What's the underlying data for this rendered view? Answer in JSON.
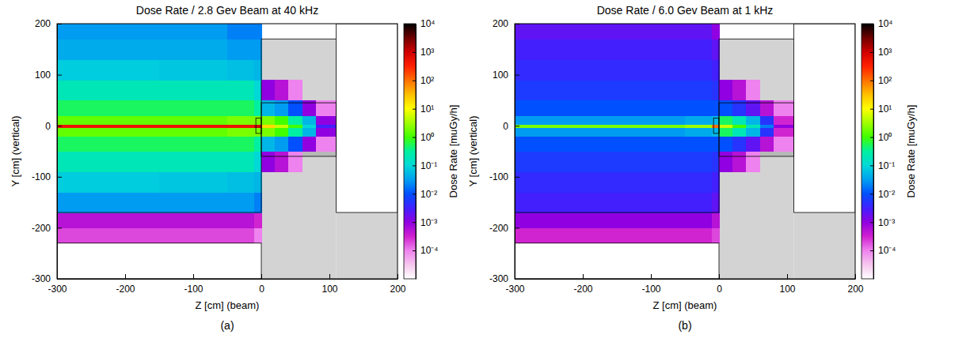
{
  "chart_data": [
    {
      "type": "heatmap",
      "title": "Dose Rate / 2.8 Gev Beam at 40 kHz",
      "panel_label": "(a)",
      "x_label": "Z [cm] (beam)",
      "y_label": "Y [cm] (vertical)",
      "xlim": [
        -300,
        200
      ],
      "xticks": [
        -300,
        -200,
        -100,
        0,
        100,
        200
      ],
      "ylim": [
        -300,
        200
      ],
      "yticks": [
        -300,
        -200,
        -100,
        0,
        100,
        200
      ],
      "x_edges": [
        -300,
        -250,
        -200,
        -150,
        -100,
        -50,
        -10,
        0,
        20,
        40,
        60,
        80,
        110,
        150,
        200
      ],
      "y_edges": [
        -300,
        -230,
        -200,
        -170,
        -130,
        -90,
        -50,
        -20,
        -3,
        3,
        20,
        50,
        90,
        130,
        170,
        200
      ],
      "cells": [
        [
          null,
          null,
          null,
          null,
          null,
          null,
          null,
          null,
          null,
          null,
          null,
          null,
          null,
          null
        ],
        [
          0.0002,
          0.0002,
          0.0002,
          0.0002,
          0.0002,
          0.0002,
          0.0001,
          null,
          null,
          null,
          null,
          null,
          null,
          null
        ],
        [
          0.0005,
          0.0005,
          0.0005,
          0.0005,
          0.0005,
          0.0005,
          0.0003,
          null,
          null,
          null,
          null,
          null,
          null,
          null
        ],
        [
          0.03,
          0.03,
          0.03,
          0.03,
          0.03,
          0.03,
          0.02,
          null,
          null,
          null,
          null,
          null,
          null,
          null
        ],
        [
          0.08,
          0.08,
          0.08,
          0.07,
          0.07,
          0.06,
          0.05,
          null,
          null,
          null,
          null,
          null,
          null,
          null
        ],
        [
          0.2,
          0.2,
          0.2,
          0.2,
          0.2,
          0.2,
          0.1,
          0.001,
          0.0005,
          0.0001,
          null,
          null,
          null,
          null
        ],
        [
          0.5,
          0.5,
          0.5,
          0.5,
          0.5,
          0.5,
          0.3,
          0.05,
          0.03,
          0.01,
          0.001,
          0.0001,
          null,
          null
        ],
        [
          1.5,
          1.5,
          1.5,
          1.5,
          1.5,
          2,
          2,
          2,
          1,
          0.3,
          0.05,
          0.001,
          null,
          null
        ],
        [
          500,
          500,
          500,
          500,
          500,
          500,
          1000,
          20,
          5,
          1,
          0.1,
          0.003,
          null,
          null
        ],
        [
          1.5,
          1.5,
          1.5,
          1.5,
          1.5,
          2,
          2,
          2,
          1,
          0.3,
          0.05,
          0.001,
          null,
          null
        ],
        [
          0.5,
          0.5,
          0.5,
          0.5,
          0.5,
          0.5,
          0.3,
          0.05,
          0.03,
          0.01,
          0.001,
          0.0001,
          null,
          null
        ],
        [
          0.2,
          0.2,
          0.2,
          0.2,
          0.2,
          0.2,
          0.1,
          0.001,
          0.0005,
          0.0001,
          null,
          null,
          null,
          null
        ],
        [
          0.08,
          0.08,
          0.08,
          0.07,
          0.07,
          0.06,
          0.05,
          null,
          null,
          null,
          null,
          null,
          null,
          null
        ],
        [
          0.04,
          0.04,
          0.04,
          0.04,
          0.04,
          0.03,
          0.03,
          null,
          null,
          null,
          null,
          null,
          null,
          null
        ],
        [
          0.03,
          0.03,
          0.03,
          0.03,
          0.03,
          0.02,
          0.02,
          null,
          null,
          null,
          null,
          null,
          null,
          null
        ]
      ],
      "shielding": [
        [
          0,
          110,
          -300,
          170
        ],
        [
          110,
          200,
          -300,
          -170
        ]
      ],
      "inner_block": [
        0,
        110,
        -60,
        45
      ],
      "outlines": [
        [
          -300,
          0,
          -300,
          -230
        ],
        [
          110,
          200,
          -170,
          200
        ],
        [
          0,
          110,
          -60,
          45
        ],
        [
          -8,
          0,
          -15,
          15
        ]
      ],
      "lines": [
        [
          -300,
          -170,
          0,
          -170
        ],
        [
          0,
          -170,
          0,
          170
        ],
        [
          0,
          170,
          110,
          170
        ]
      ],
      "colorbar": {
        "label": "Dose Rate [muGy/h]",
        "range": [
          1e-05,
          10000
        ],
        "ticks": [
          {
            "value": 0.0001,
            "label": "10⁻⁴"
          },
          {
            "value": 0.001,
            "label": "10⁻³"
          },
          {
            "value": 0.01,
            "label": "10⁻²"
          },
          {
            "value": 0.1,
            "label": "10⁻¹"
          },
          {
            "value": 1,
            "label": "10⁰"
          },
          {
            "value": 10,
            "label": "10¹"
          },
          {
            "value": 100,
            "label": "10²"
          },
          {
            "value": 1000,
            "label": "10³"
          },
          {
            "value": 10000,
            "label": "10⁴"
          }
        ]
      }
    },
    {
      "type": "heatmap",
      "title": "Dose Rate / 6.0 Gev Beam at 1 kHz",
      "panel_label": "(b)",
      "x_label": "Z [cm] (beam)",
      "y_label": "Y [cm] (vertical)",
      "xlim": [
        -300,
        200
      ],
      "xticks": [
        -300,
        -200,
        -100,
        0,
        100,
        200
      ],
      "ylim": [
        -300,
        200
      ],
      "yticks": [
        -300,
        -200,
        -100,
        0,
        100,
        200
      ],
      "x_edges": [
        -300,
        -250,
        -200,
        -150,
        -100,
        -50,
        -10,
        0,
        20,
        40,
        60,
        80,
        110,
        150,
        200
      ],
      "y_edges": [
        -300,
        -230,
        -200,
        -170,
        -130,
        -90,
        -50,
        -20,
        -3,
        3,
        20,
        50,
        90,
        130,
        170,
        200
      ],
      "cells": [
        [
          null,
          null,
          null,
          null,
          null,
          null,
          null,
          null,
          null,
          null,
          null,
          null,
          null,
          null
        ],
        [
          0.0003,
          0.0003,
          0.0003,
          0.0003,
          0.0003,
          0.0003,
          0.0002,
          null,
          null,
          null,
          null,
          null,
          null,
          null
        ],
        [
          0.001,
          0.001,
          0.001,
          0.001,
          0.001,
          0.001,
          0.0005,
          null,
          null,
          null,
          null,
          null,
          null,
          null
        ],
        [
          0.003,
          0.003,
          0.003,
          0.003,
          0.003,
          0.003,
          0.002,
          null,
          null,
          null,
          null,
          null,
          null,
          null
        ],
        [
          0.004,
          0.004,
          0.004,
          0.004,
          0.004,
          0.004,
          0.003,
          null,
          null,
          null,
          null,
          null,
          null,
          null
        ],
        [
          0.006,
          0.006,
          0.006,
          0.006,
          0.006,
          0.006,
          0.005,
          0.001,
          0.0005,
          0.0001,
          null,
          null,
          null,
          null
        ],
        [
          0.01,
          0.01,
          0.01,
          0.01,
          0.01,
          0.01,
          0.01,
          0.01,
          0.005,
          0.002,
          0.0005,
          0.0001,
          null,
          null
        ],
        [
          0.03,
          0.03,
          0.03,
          0.03,
          0.03,
          0.04,
          0.05,
          0.5,
          0.2,
          0.05,
          0.005,
          0.0003,
          null,
          null
        ],
        [
          2,
          2,
          2,
          2,
          2,
          3,
          100,
          5,
          1,
          0.2,
          0.02,
          0.001,
          null,
          null
        ],
        [
          0.03,
          0.03,
          0.03,
          0.03,
          0.03,
          0.04,
          0.05,
          0.5,
          0.2,
          0.05,
          0.005,
          0.0003,
          null,
          null
        ],
        [
          0.01,
          0.01,
          0.01,
          0.01,
          0.01,
          0.01,
          0.01,
          0.01,
          0.005,
          0.002,
          0.0005,
          0.0001,
          null,
          null
        ],
        [
          0.006,
          0.006,
          0.006,
          0.006,
          0.006,
          0.006,
          0.005,
          0.001,
          0.0005,
          0.0001,
          null,
          null,
          null,
          null
        ],
        [
          0.004,
          0.004,
          0.004,
          0.004,
          0.004,
          0.004,
          0.003,
          null,
          null,
          null,
          null,
          null,
          null,
          null
        ],
        [
          0.003,
          0.003,
          0.003,
          0.003,
          0.003,
          0.003,
          0.002,
          null,
          null,
          null,
          null,
          null,
          null,
          null
        ],
        [
          0.002,
          0.002,
          0.002,
          0.002,
          0.002,
          0.002,
          0.001,
          null,
          null,
          null,
          null,
          null,
          null,
          null
        ]
      ],
      "shielding": [
        [
          0,
          110,
          -300,
          170
        ],
        [
          110,
          200,
          -300,
          -170
        ]
      ],
      "inner_block": [
        0,
        110,
        -60,
        45
      ],
      "outlines": [
        [
          -300,
          0,
          -300,
          -230
        ],
        [
          110,
          200,
          -170,
          200
        ],
        [
          0,
          110,
          -60,
          45
        ],
        [
          -8,
          0,
          -15,
          15
        ]
      ],
      "lines": [
        [
          -300,
          -170,
          0,
          -170
        ],
        [
          0,
          -170,
          0,
          170
        ],
        [
          0,
          170,
          110,
          170
        ]
      ],
      "colorbar": {
        "label": "Dose Rate [muGy/h]",
        "range": [
          1e-05,
          10000
        ],
        "ticks": [
          {
            "value": 0.0001,
            "label": "10⁻⁴"
          },
          {
            "value": 0.001,
            "label": "10⁻³"
          },
          {
            "value": 0.01,
            "label": "10⁻²"
          },
          {
            "value": 0.1,
            "label": "10⁻¹"
          },
          {
            "value": 1,
            "label": "10⁰"
          },
          {
            "value": 10,
            "label": "10¹"
          },
          {
            "value": 100,
            "label": "10²"
          },
          {
            "value": 1000,
            "label": "10³"
          },
          {
            "value": 10000,
            "label": "10⁴"
          }
        ]
      }
    }
  ]
}
